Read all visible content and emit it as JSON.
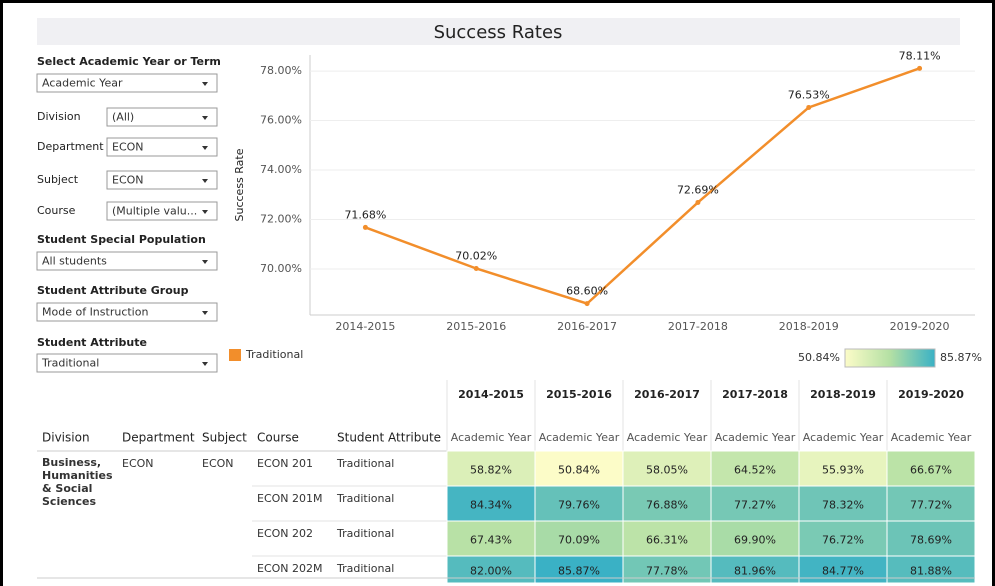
{
  "header": {
    "title": "Success Rates"
  },
  "filters": [
    {
      "label": "Select Academic Year or Term",
      "value": "Academic Year"
    },
    {
      "label": "Division",
      "value": "(All)"
    },
    {
      "label": "Department",
      "value": "ECON"
    },
    {
      "label": "Subject",
      "value": "ECON"
    },
    {
      "label": "Course",
      "value": "(Multiple valu..."
    },
    {
      "label": "Student Special Population",
      "value": "All students"
    },
    {
      "label": "Student Attribute Group",
      "value": "Mode of Instruction"
    },
    {
      "label": "Student Attribute",
      "value": "Traditional"
    }
  ],
  "chart_data": {
    "type": "line",
    "y_label": "Success Rate",
    "categories": [
      "2014-2015",
      "2015-2016",
      "2016-2017",
      "2017-2018",
      "2018-2019",
      "2019-2020"
    ],
    "series": [
      {
        "name": "Traditional",
        "color": "#f28e2b",
        "values": [
          71.68,
          70.02,
          68.6,
          72.69,
          76.53,
          78.11
        ],
        "value_labels": [
          "71.68%",
          "70.02%",
          "68.60%",
          "72.69%",
          "76.53%",
          "78.11%"
        ]
      }
    ],
    "ylim": [
      68.14,
      78.65
    ],
    "yticks": [
      {
        "value": 70,
        "label": "70.00%"
      },
      {
        "value": 72,
        "label": "72.00%"
      },
      {
        "value": 74,
        "label": "74.00%"
      },
      {
        "value": 76,
        "label": "76.00%"
      },
      {
        "value": 78,
        "label": "78.00%"
      }
    ],
    "grid": true
  },
  "heatmap": {
    "color_legend": [
      {
        "value": 50.84,
        "label": "50.84%"
      },
      {
        "value": 85.87,
        "label": "85.87%"
      }
    ],
    "colors": [
      "#fcfcc8",
      "#b4e0a4",
      "#3ab1c5"
    ],
    "column_headers": [
      "Division",
      "Department",
      "Subject",
      "Course",
      "Student Attribute"
    ],
    "years": [
      "2014-2015",
      "2015-2016",
      "2016-2017",
      "2017-2018",
      "2018-2019",
      "2019-2020"
    ],
    "period": "Academic Year",
    "division": "Business, Humanities & Social Sciences",
    "department": "ECON",
    "subject": "ECON",
    "rows": [
      {
        "course": "ECON 201",
        "attribute": "Traditional",
        "values": [
          58.82,
          50.84,
          58.05,
          64.52,
          55.93,
          66.67
        ],
        "value_labels": [
          "58.82%",
          "50.84%",
          "58.05%",
          "64.52%",
          "55.93%",
          "66.67%"
        ]
      },
      {
        "course": "ECON 201M",
        "attribute": "Traditional",
        "values": [
          84.34,
          79.76,
          76.88,
          77.27,
          78.32,
          77.72
        ],
        "value_labels": [
          "84.34%",
          "79.76%",
          "76.88%",
          "77.27%",
          "78.32%",
          "77.72%"
        ]
      },
      {
        "course": "ECON 202",
        "attribute": "Traditional",
        "values": [
          67.43,
          70.09,
          66.31,
          69.9,
          76.72,
          78.69
        ],
        "value_labels": [
          "67.43%",
          "70.09%",
          "66.31%",
          "69.90%",
          "76.72%",
          "78.69%"
        ]
      },
      {
        "course": "ECON 202M",
        "attribute": "Traditional",
        "values": [
          82.0,
          85.87,
          77.78,
          81.96,
          84.77,
          81.88
        ],
        "value_labels": [
          "82.00%",
          "85.87%",
          "77.78%",
          "81.96%",
          "84.77%",
          "81.88%"
        ]
      }
    ]
  }
}
